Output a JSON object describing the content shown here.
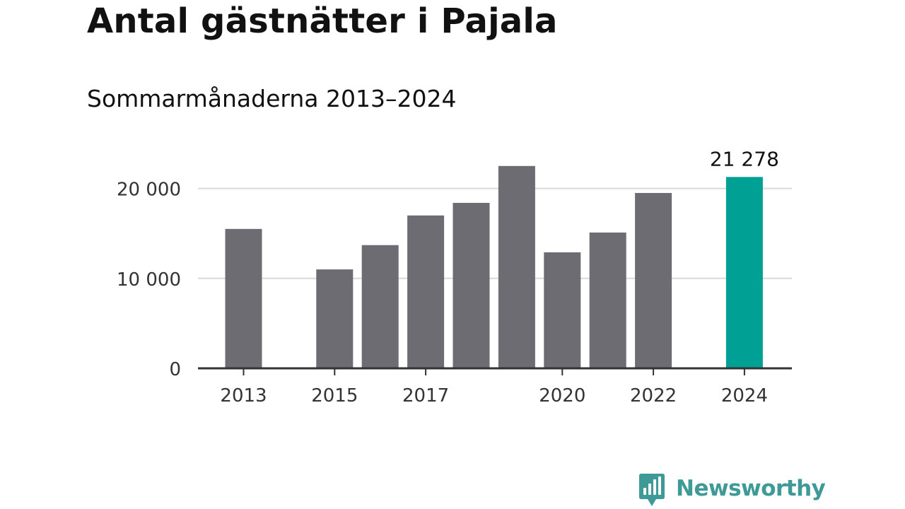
{
  "header": {
    "title": "Antal gästnätter i Pajala",
    "subtitle": "Sommarmånaderna 2013–2024"
  },
  "chart_data": {
    "type": "bar",
    "title": "Antal gästnätter i Pajala",
    "subtitle": "Sommarmånaderna 2013–2024",
    "xlabel": "",
    "ylabel": "",
    "categories": [
      "2013",
      "2014",
      "2015",
      "2016",
      "2017",
      "2018",
      "2019",
      "2020",
      "2021",
      "2022",
      "2023",
      "2024"
    ],
    "values": [
      15500,
      null,
      11000,
      13700,
      17000,
      18400,
      22500,
      12900,
      15100,
      19500,
      null,
      21278
    ],
    "highlight_index": 11,
    "highlight_label": "21 278",
    "ylim": [
      0,
      25000
    ],
    "y_ticks": [
      {
        "value": 0,
        "label": "0"
      },
      {
        "value": 10000,
        "label": "10 000"
      },
      {
        "value": 20000,
        "label": "20 000"
      }
    ],
    "x_tick_labels": [
      {
        "category": "2013",
        "label": "2013"
      },
      {
        "category": "2015",
        "label": "2015"
      },
      {
        "category": "2017",
        "label": "2017"
      },
      {
        "category": "2020",
        "label": "2020"
      },
      {
        "category": "2022",
        "label": "2022"
      },
      {
        "category": "2024",
        "label": "2024"
      }
    ],
    "grid": true,
    "colors": {
      "bar": "#6d6c72",
      "highlight": "#00a095",
      "grid": "#d9d9d9",
      "axis": "#333333",
      "text": "#333333"
    }
  },
  "branding": {
    "name": "Newsworthy",
    "color": "#3e9a97",
    "icon": "newsworthy-chart-bubble-icon"
  }
}
